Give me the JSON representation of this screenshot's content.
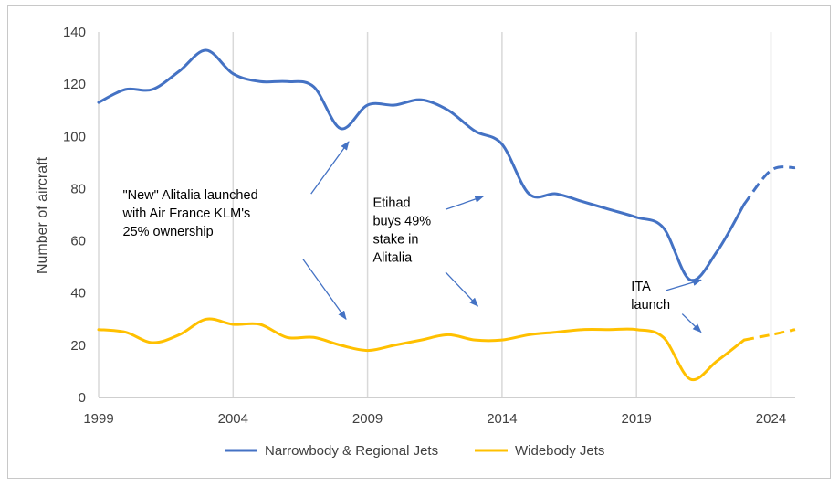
{
  "chart_data": {
    "type": "line",
    "title": "",
    "xlabel": "",
    "ylabel": "Number of aircraft",
    "xlim": [
      1999,
      2024.9
    ],
    "ylim": [
      0,
      140
    ],
    "x_ticks": [
      1999,
      2004,
      2009,
      2014,
      2019,
      2024
    ],
    "y_ticks": [
      0,
      20,
      40,
      60,
      80,
      100,
      120,
      140
    ],
    "grid": "vertical",
    "legend_position": "bottom",
    "colors": {
      "narrowbody": "#4472C4",
      "widebody": "#FFC000",
      "grid": "#d9d9d9",
      "axis": "#bfbfbf",
      "arrow": "#4472C4"
    },
    "series": [
      {
        "name": "Narrowbody & Regional Jets",
        "color": "#4472C4",
        "points": [
          [
            1999,
            113
          ],
          [
            2000,
            118
          ],
          [
            2001,
            118
          ],
          [
            2002,
            125
          ],
          [
            2003,
            133
          ],
          [
            2004,
            124
          ],
          [
            2005,
            121
          ],
          [
            2006,
            121
          ],
          [
            2007,
            119
          ],
          [
            2008,
            103
          ],
          [
            2009,
            112
          ],
          [
            2010,
            112
          ],
          [
            2011,
            114
          ],
          [
            2012,
            110
          ],
          [
            2013,
            102
          ],
          [
            2014,
            97
          ],
          [
            2015,
            78
          ],
          [
            2016,
            78
          ],
          [
            2017,
            75
          ],
          [
            2018,
            72
          ],
          [
            2019,
            69
          ],
          [
            2020,
            65
          ],
          [
            2021,
            45
          ],
          [
            2022,
            56
          ],
          [
            2023,
            74
          ],
          [
            2024,
            87
          ],
          [
            2024.9,
            88
          ]
        ],
        "dashed_from": 2023
      },
      {
        "name": "Widebody Jets",
        "color": "#FFC000",
        "points": [
          [
            1999,
            26
          ],
          [
            2000,
            25
          ],
          [
            2001,
            21
          ],
          [
            2002,
            24
          ],
          [
            2003,
            30
          ],
          [
            2004,
            28
          ],
          [
            2005,
            28
          ],
          [
            2006,
            23
          ],
          [
            2007,
            23
          ],
          [
            2008,
            20
          ],
          [
            2009,
            18
          ],
          [
            2010,
            20
          ],
          [
            2011,
            22
          ],
          [
            2012,
            24
          ],
          [
            2013,
            22
          ],
          [
            2014,
            22
          ],
          [
            2015,
            24
          ],
          [
            2016,
            25
          ],
          [
            2017,
            26
          ],
          [
            2018,
            26
          ],
          [
            2019,
            26
          ],
          [
            2020,
            23
          ],
          [
            2021,
            7
          ],
          [
            2022,
            14
          ],
          [
            2023,
            22
          ],
          [
            2024,
            24
          ],
          [
            2024.9,
            26
          ]
        ],
        "dashed_from": 2023
      }
    ],
    "annotations": [
      {
        "lines": [
          "\"New\" Alitalia launched",
          "with Air France KLM's",
          "25% ownership"
        ],
        "text_at": [
          1999.9,
          76
        ],
        "arrows": [
          {
            "from": [
              2006.9,
              78
            ],
            "to": [
              2008.3,
              98
            ]
          },
          {
            "from": [
              2006.6,
              53
            ],
            "to": [
              2008.2,
              30
            ]
          }
        ]
      },
      {
        "lines": [
          "Etihad",
          "buys 49%",
          "stake in",
          "Alitalia"
        ],
        "text_at": [
          2009.2,
          73
        ],
        "arrows": [
          {
            "from": [
              2011.9,
              72
            ],
            "to": [
              2013.3,
              77
            ]
          },
          {
            "from": [
              2011.9,
              48
            ],
            "to": [
              2013.1,
              35
            ]
          }
        ]
      },
      {
        "lines": [
          "ITA",
          "launch"
        ],
        "text_at": [
          2018.8,
          41
        ],
        "arrows": [
          {
            "from": [
              2020.1,
              41
            ],
            "to": [
              2021.4,
              45
            ]
          },
          {
            "from": [
              2020.7,
              32
            ],
            "to": [
              2021.4,
              25
            ]
          }
        ]
      }
    ]
  }
}
